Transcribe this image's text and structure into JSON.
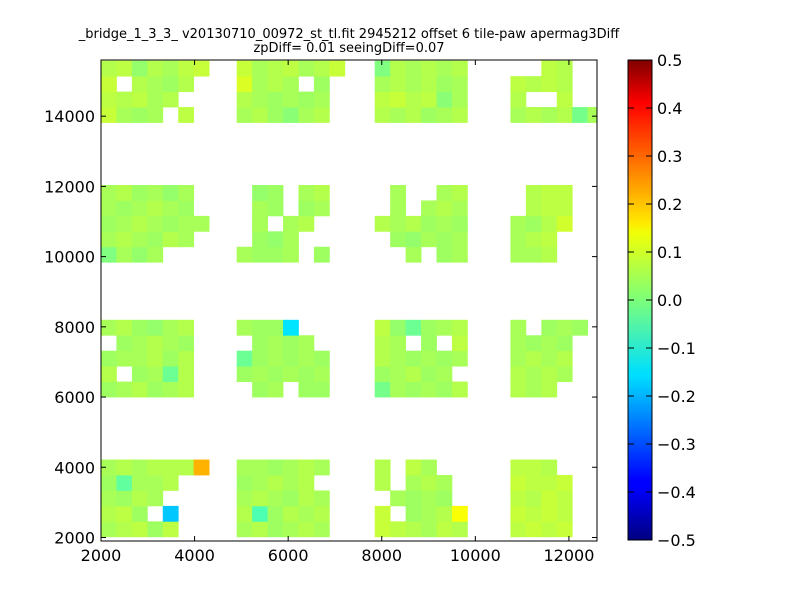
{
  "chart_data": {
    "type": "heatmap",
    "title": "_bridge_1_3_3_ v20130710_00972_st_tl.fit 2945212 offset 6 tile-paw apermag3Diff",
    "subtitle": "zpDiff= 0.01 seeingDiff=0.07",
    "xlim": [
      2000,
      12600
    ],
    "ylim": [
      1900,
      15600
    ],
    "x_ticks": [
      2000,
      4000,
      6000,
      8000,
      10000,
      12000
    ],
    "y_ticks": [
      2000,
      4000,
      6000,
      8000,
      10000,
      12000,
      14000
    ],
    "cell_size": [
      330,
      440
    ],
    "colorbar": {
      "colormap": "jet",
      "range": [
        -0.5,
        0.5
      ],
      "ticks": [
        0.5,
        0.4,
        0.3,
        0.2,
        0.1,
        0.0,
        -0.1,
        -0.2,
        -0.3,
        -0.4,
        -0.5
      ],
      "tick_labels": [
        "0.5",
        "0.4",
        "0.3",
        "0.2",
        "0.1",
        "0.0",
        "−0.1",
        "−0.2",
        "−0.3",
        "−0.4",
        "−0.5"
      ]
    },
    "tiles": [
      {
        "x": [
          2000,
          2330,
          2660,
          2990,
          3320,
          3650,
          3980
        ],
        "y": [
          2020,
          2460,
          2900,
          3340,
          3780
        ],
        "values": [
          [
            0.04,
            0.05,
            0.06,
            0.03,
            0.06,
            null,
            null
          ],
          [
            0.05,
            0.06,
            0.03,
            null,
            -0.18,
            null,
            null
          ],
          [
            0.04,
            0.03,
            0.05,
            0.04,
            null,
            null,
            null
          ],
          [
            0.03,
            -0.03,
            0.04,
            0.04,
            0.05,
            null,
            null
          ],
          [
            0.04,
            0.05,
            0.04,
            0.05,
            0.05,
            0.05,
            0.2
          ]
        ]
      },
      {
        "x": [
          4900,
          5230,
          5560,
          5890,
          6220,
          6550
        ],
        "y": [
          2020,
          2460,
          2900,
          3340,
          3780
        ],
        "values": [
          [
            0.04,
            0.05,
            0.03,
            0.04,
            0.05,
            0.04
          ],
          [
            0.05,
            -0.05,
            0.03,
            0.05,
            0.04,
            0.05
          ],
          [
            0.04,
            0.05,
            0.04,
            0.03,
            0.05,
            0.04
          ],
          [
            0.03,
            0.04,
            0.05,
            0.04,
            0.05,
            null
          ],
          [
            0.04,
            0.04,
            0.03,
            0.04,
            0.05,
            0.04
          ]
        ]
      },
      {
        "x": [
          7850,
          8180,
          8510,
          8840,
          9170,
          9500
        ],
        "y": [
          2020,
          2460,
          2900,
          3340,
          3780
        ],
        "values": [
          [
            0.07,
            0.06,
            0.05,
            0.04,
            0.06,
            0.05
          ],
          [
            0.07,
            null,
            0.03,
            0.04,
            0.05,
            0.12
          ],
          [
            null,
            0.04,
            0.03,
            0.04,
            0.03,
            null
          ],
          [
            0.05,
            null,
            0.04,
            0.05,
            0.04,
            null
          ],
          [
            0.05,
            null,
            0.06,
            0.04,
            null,
            null
          ]
        ]
      },
      {
        "x": [
          10750,
          11080,
          11410,
          11740
        ],
        "y": [
          2020,
          2460,
          2900,
          3340,
          3780
        ],
        "values": [
          [
            0.06,
            0.07,
            0.06,
            0.07
          ],
          [
            0.07,
            0.06,
            0.07,
            0.06
          ],
          [
            0.06,
            0.05,
            0.07,
            0.06
          ],
          [
            0.07,
            0.06,
            0.06,
            0.07
          ],
          [
            0.06,
            0.06,
            0.05,
            null
          ]
        ]
      },
      {
        "x": [
          2000,
          2330,
          2660,
          2990,
          3320,
          3650
        ],
        "y": [
          6000,
          6440,
          6880,
          7320,
          7760
        ],
        "values": [
          [
            0.03,
            0.04,
            0.05,
            0.03,
            0.04,
            0.05
          ],
          [
            0.05,
            null,
            0.03,
            0.04,
            -0.02,
            0.05
          ],
          [
            0.03,
            0.04,
            0.04,
            0.05,
            0.03,
            0.05
          ],
          [
            null,
            0.03,
            0.04,
            0.05,
            0.04,
            0.03
          ],
          [
            0.04,
            0.05,
            0.03,
            0.02,
            0.04,
            0.05
          ]
        ]
      },
      {
        "x": [
          4900,
          5230,
          5560,
          5890,
          6220,
          6550
        ],
        "y": [
          6000,
          6440,
          6880,
          7320,
          7760
        ],
        "values": [
          [
            null,
            0.03,
            0.04,
            null,
            0.03,
            0.03
          ],
          [
            0.03,
            0.04,
            0.03,
            0.04,
            0.03,
            0.04
          ],
          [
            -0.02,
            0.03,
            0.04,
            0.03,
            0.04,
            0.03
          ],
          [
            null,
            0.03,
            0.04,
            0.03,
            0.04,
            null
          ],
          [
            0.04,
            0.03,
            0.03,
            -0.15,
            null,
            null
          ]
        ]
      },
      {
        "x": [
          7850,
          8180,
          8510,
          8840,
          9170,
          9500
        ],
        "y": [
          6000,
          6440,
          6880,
          7320,
          7760
        ],
        "values": [
          [
            -0.01,
            0.04,
            0.03,
            0.04,
            0.03,
            0.05
          ],
          [
            0.03,
            0.04,
            0.05,
            0.03,
            0.04,
            null
          ],
          [
            0.05,
            0.04,
            0.03,
            0.04,
            0.03,
            0.04
          ],
          [
            0.05,
            0.04,
            null,
            0.03,
            null,
            0.06
          ],
          [
            0.06,
            0.02,
            -0.02,
            0.03,
            0.04,
            0.05
          ]
        ]
      },
      {
        "x": [
          10750,
          11080,
          11410,
          11740,
          12070
        ],
        "y": [
          6000,
          6440,
          6880,
          7320,
          7760
        ],
        "values": [
          [
            0.05,
            0.04,
            0.05,
            null,
            null
          ],
          [
            0.05,
            0.04,
            0.05,
            0.04,
            null
          ],
          [
            0.04,
            0.05,
            0.04,
            0.05,
            null
          ],
          [
            0.04,
            0.03,
            0.04,
            0.03,
            null
          ],
          [
            0.04,
            null,
            0.03,
            0.04,
            0.03
          ]
        ]
      },
      {
        "x": [
          2000,
          2330,
          2660,
          2990,
          3320,
          3650,
          3980
        ],
        "y": [
          9840,
          10280,
          10720,
          11160,
          11600
        ],
        "values": [
          [
            0.0,
            0.04,
            0.02,
            0.04,
            null,
            null,
            null
          ],
          [
            0.04,
            0.05,
            0.04,
            0.03,
            0.05,
            0.04,
            null
          ],
          [
            0.03,
            0.04,
            0.05,
            0.04,
            0.03,
            0.04,
            0.04
          ],
          [
            0.04,
            0.03,
            0.04,
            0.05,
            0.04,
            0.03,
            null
          ],
          [
            0.04,
            0.05,
            0.03,
            0.04,
            0.02,
            0.04,
            null
          ]
        ]
      },
      {
        "x": [
          4900,
          5230,
          5560,
          5890,
          6220,
          6550
        ],
        "y": [
          9840,
          10280,
          10720,
          11160,
          11600
        ],
        "values": [
          [
            0.04,
            0.03,
            0.03,
            0.04,
            null,
            0.03
          ],
          [
            null,
            0.03,
            0.02,
            0.04,
            null,
            null
          ],
          [
            null,
            0.04,
            null,
            0.04,
            0.05,
            null
          ],
          [
            null,
            0.04,
            0.03,
            null,
            0.03,
            0.04
          ],
          [
            null,
            0.02,
            0.03,
            null,
            0.04,
            0.05
          ]
        ]
      },
      {
        "x": [
          7850,
          8180,
          8510,
          8840,
          9170,
          9500
        ],
        "y": [
          9840,
          10280,
          10720,
          11160,
          11600
        ],
        "values": [
          [
            null,
            null,
            0.04,
            null,
            0.03,
            0.04
          ],
          [
            null,
            0.03,
            0.02,
            0.04,
            0.03,
            0.04
          ],
          [
            0.05,
            0.04,
            0.05,
            0.03,
            0.04,
            0.03
          ],
          [
            null,
            0.04,
            null,
            0.04,
            0.05,
            0.04
          ],
          [
            null,
            0.04,
            null,
            null,
            0.04,
            0.05
          ]
        ]
      },
      {
        "x": [
          10750,
          11080,
          11410,
          11740
        ],
        "y": [
          9840,
          10280,
          10720,
          11160,
          11600
        ],
        "values": [
          [
            0.04,
            0.04,
            0.05,
            null
          ],
          [
            0.04,
            0.05,
            0.06,
            null
          ],
          [
            0.04,
            0.03,
            0.05,
            0.08
          ],
          [
            null,
            0.05,
            0.06,
            0.06
          ],
          [
            null,
            0.05,
            0.06,
            0.06
          ]
        ]
      },
      {
        "x": [
          2000,
          2330,
          2660,
          2990,
          3320,
          3650,
          3980
        ],
        "y": [
          13820,
          14260,
          14700,
          15140
        ],
        "values": [
          [
            0.07,
            0.04,
            0.03,
            0.04,
            null,
            0.06,
            null
          ],
          [
            0.06,
            0.05,
            0.06,
            0.04,
            0.05,
            null,
            null
          ],
          [
            0.07,
            null,
            0.05,
            0.04,
            0.03,
            0.05,
            null
          ],
          [
            0.05,
            0.06,
            0.02,
            0.05,
            0.04,
            0.06,
            0.07
          ]
        ]
      },
      {
        "x": [
          4900,
          5230,
          5560,
          5890,
          6220,
          6550,
          6880
        ],
        "y": [
          13820,
          14260,
          14700,
          15140
        ],
        "values": [
          [
            0.04,
            0.05,
            0.03,
            0.01,
            0.04,
            0.05,
            null
          ],
          [
            0.05,
            0.04,
            0.03,
            0.04,
            0.03,
            0.04,
            null
          ],
          [
            0.09,
            0.04,
            0.05,
            0.04,
            null,
            0.03,
            null
          ],
          [
            0.07,
            0.04,
            0.05,
            0.06,
            0.04,
            0.05,
            0.07
          ]
        ]
      },
      {
        "x": [
          7850,
          8180,
          8510,
          8840,
          9170,
          9500
        ],
        "y": [
          13820,
          14260,
          14700,
          15140
        ],
        "values": [
          [
            0.05,
            0.04,
            0.05,
            0.03,
            0.04,
            0.05
          ],
          [
            0.06,
            0.07,
            0.05,
            0.06,
            0.01,
            0.04
          ],
          [
            0.04,
            0.05,
            0.04,
            0.05,
            0.03,
            0.04
          ],
          [
            0.0,
            0.05,
            0.04,
            0.05,
            0.04,
            0.05
          ]
        ]
      },
      {
        "x": [
          10750,
          11080,
          11410,
          11740,
          12070,
          12400
        ],
        "y": [
          13820,
          14260,
          14700,
          15140
        ],
        "values": [
          [
            0.04,
            0.05,
            0.04,
            0.05,
            -0.01,
            0.04
          ],
          [
            0.05,
            null,
            null,
            0.06,
            null,
            null
          ],
          [
            0.06,
            0.05,
            0.06,
            0.05,
            null,
            null
          ],
          [
            null,
            null,
            0.06,
            0.05,
            null,
            null
          ]
        ]
      }
    ]
  }
}
